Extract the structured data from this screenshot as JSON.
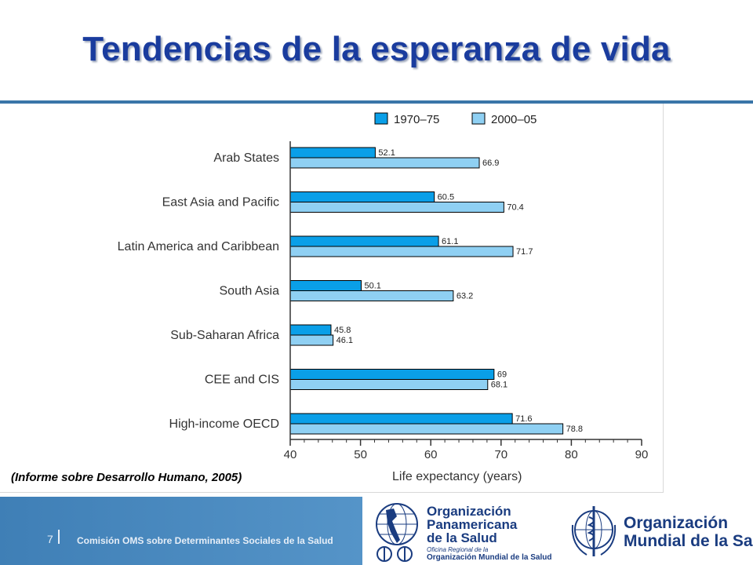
{
  "slide": {
    "title": "Tendencias de la esperanza de vida",
    "citation": "(Informe sobre Desarrollo Humano, 2005)",
    "footer": {
      "page_number": "7",
      "text": "Comisión OMS sobre Determinantes Sociales de la Salud",
      "paho_name_lines": [
        "Organización",
        "Panamericana",
        "de la Salud"
      ],
      "paho_sub_line1": "Oficina Regional de la",
      "paho_sub_line2": "Organización Mundial de la Salud",
      "who_name_lines": [
        "Organización",
        "Mundial de la Salud"
      ]
    }
  },
  "chart_data": {
    "type": "bar",
    "orientation": "horizontal",
    "categories": [
      "Arab States",
      "East Asia and Pacific",
      "Latin America and Caribbean",
      "South Asia",
      "Sub-Saharan Africa",
      "CEE and CIS",
      "High-income OECD"
    ],
    "series": [
      {
        "name": "1970–75",
        "values": [
          52.1,
          60.5,
          61.1,
          50.1,
          45.8,
          69,
          71.6
        ],
        "color": "#0a9fe8"
      },
      {
        "name": "2000–05",
        "values": [
          66.9,
          70.4,
          71.7,
          63.2,
          46.1,
          68.1,
          78.8
        ],
        "color": "#8fd0f3"
      }
    ],
    "data_labels": [
      [
        "52.1",
        "60.5",
        "61.1",
        "50.1",
        "45.8",
        "69",
        "71.6"
      ],
      [
        "66.9",
        "70.4",
        "71.7",
        "63.2",
        "46.1",
        "68.1",
        "78.8"
      ]
    ],
    "xlabel": "Life expectancy (years)",
    "xlim": [
      40,
      90
    ],
    "xticks": [
      40,
      50,
      60,
      70,
      80,
      90
    ],
    "legend": "top",
    "grid": false
  }
}
